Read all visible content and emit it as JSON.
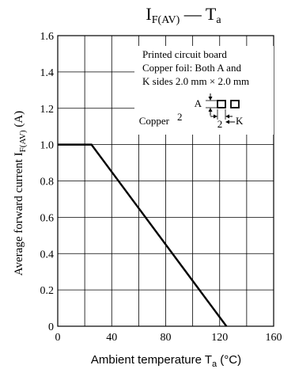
{
  "chart_data": {
    "type": "line",
    "title": {
      "main": "I",
      "main_sub": "F(AV)",
      "dash": " — ",
      "var": "T",
      "var_sub": "a"
    },
    "xlabel": {
      "text": "Ambient temperature  T",
      "sub": "a",
      "unit": " (°C)"
    },
    "ylabel": {
      "text": "Average forward current  I",
      "sub": "F(AV)",
      "unit": "  (A)"
    },
    "xlim": [
      0,
      160
    ],
    "ylim": [
      0,
      1.6
    ],
    "xticks": [
      0,
      20,
      40,
      60,
      80,
      100,
      120,
      140,
      160
    ],
    "xtick_labels": [
      "0",
      "40",
      "80",
      "120",
      "160"
    ],
    "xtick_label_values": [
      0,
      40,
      80,
      120,
      160
    ],
    "yticks": [
      0,
      0.2,
      0.4,
      0.6,
      0.8,
      1.0,
      1.2,
      1.4,
      1.6
    ],
    "ytick_labels": [
      "0",
      "0.2",
      "0.4",
      "0.6",
      "0.8",
      "1.0",
      "1.2",
      "1.4",
      "1.6"
    ],
    "grid": true,
    "series": [
      {
        "x": [
          0,
          25,
          125
        ],
        "y": [
          1.0,
          1.0,
          0
        ]
      }
    ],
    "annotation": {
      "lines": [
        "Printed circuit board",
        "Copper foil: Both A and",
        "K sides 2.0 mm × 2.0 mm"
      ],
      "copper_label": "Copper",
      "a_label": "A",
      "k_label": "K",
      "dim_vertical": "2",
      "dim_horizontal": "2"
    }
  }
}
